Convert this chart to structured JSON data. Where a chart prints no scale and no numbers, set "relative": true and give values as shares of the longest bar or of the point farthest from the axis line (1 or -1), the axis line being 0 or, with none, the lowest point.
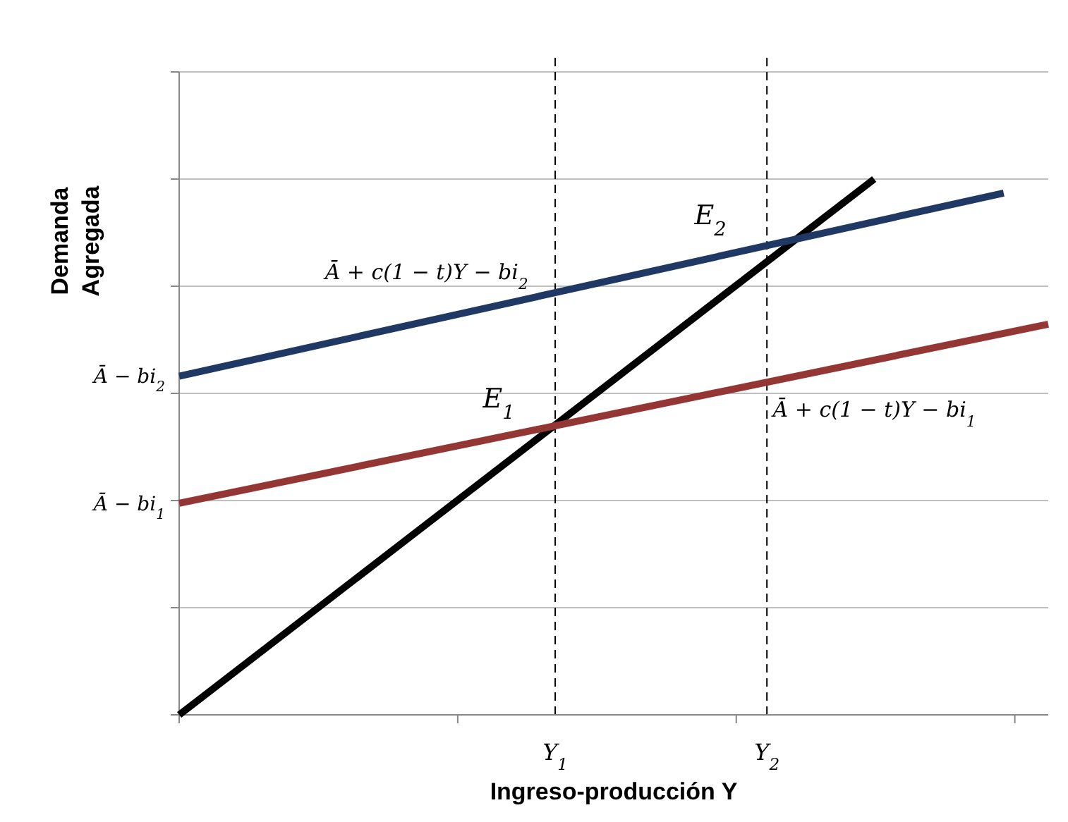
{
  "chart_data": {
    "type": "line",
    "xlabel": "Ingreso-producción Y",
    "ylabel": "Demanda\nAgregada",
    "xlim": [
      0,
      3.12
    ],
    "relative": true,
    "xticks": [
      {
        "value": 0,
        "label": null
      },
      {
        "value": 1,
        "label": null
      },
      {
        "value": 1.35,
        "label": "Y$_{1}$"
      },
      {
        "value": 2,
        "label": null
      },
      {
        "value": 2.11,
        "label": "Y$_{2}$"
      },
      {
        "value": 3,
        "label": null
      }
    ],
    "grid": "y",
    "series": [
      {
        "color": "#000000",
        "x": [
          0,
          2.495
        ],
        "values": [
          0,
          1.0
        ]
      },
      {
        "name": "Ā + c(1 − t)Y − bi$_{2}$",
        "color": "#1f3864",
        "x": [
          0,
          2.96
        ],
        "values": [
          0.632,
          0.974
        ]
      },
      {
        "name": "Ā + c(1 − t)Y − bi$_{1}$",
        "color": "#943634",
        "x": [
          0,
          3.12
        ],
        "values": [
          0.395,
          0.729
        ]
      }
    ],
    "ref_lines": [
      {
        "axis": "x",
        "value": 1.35,
        "line_style": "dashed",
        "color": "#000000"
      },
      {
        "axis": "x",
        "value": 2.11,
        "line_style": "dashed",
        "color": "#000000"
      }
    ],
    "annotations": [
      {
        "text": "E$_{1}$",
        "x": 1.35,
        "y": 0.537
      },
      {
        "text": "E$_{2}$",
        "x": 2.11,
        "y": 0.879
      },
      {
        "text": "Ā − bi$_{2}$",
        "x": 0,
        "y": 0.632
      },
      {
        "text": "Ā − bi$_{1}$",
        "x": 0,
        "y": 0.395
      }
    ]
  }
}
